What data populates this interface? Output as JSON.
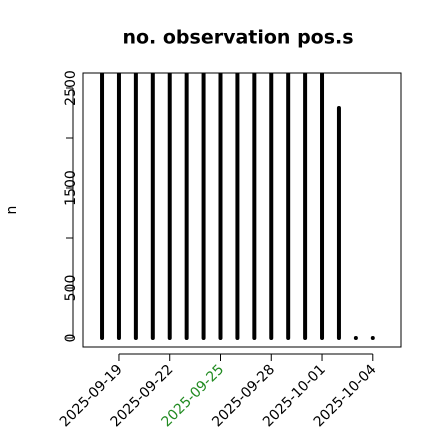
{
  "chart_data": {
    "type": "spike",
    "title": "no. observation pos.s",
    "y_label": "n",
    "x": [
      "2025-09-18",
      "2025-09-19",
      "2025-09-20",
      "2025-09-21",
      "2025-09-22",
      "2025-09-23",
      "2025-09-24",
      "2025-09-25",
      "2025-09-26",
      "2025-09-27",
      "2025-09-28",
      "2025-09-29",
      "2025-09-30",
      "2025-10-01",
      "2025-10-02",
      "2025-10-03",
      "2025-10-04"
    ],
    "values": [
      2650,
      2650,
      2650,
      2650,
      2650,
      2650,
      2650,
      2650,
      2650,
      2650,
      2650,
      2650,
      2650,
      2650,
      2300,
      0,
      0
    ],
    "color": "#000000",
    "xlim": [
      "2025-09-16T21:00Z",
      "2025-10-05T16:00Z"
    ],
    "xticks": [
      "2025-09-19",
      "2025-09-22",
      "2025-09-25",
      "2025-09-28",
      "2025-10-01",
      "2025-10-04"
    ],
    "highlight_tick": "2025-09-25",
    "highlight_color": "#228b22",
    "ylim": [
      -90,
      2650
    ],
    "yticks": [
      0,
      500,
      1500,
      2500
    ],
    "yticks_minor": [
      1000,
      2000
    ]
  }
}
